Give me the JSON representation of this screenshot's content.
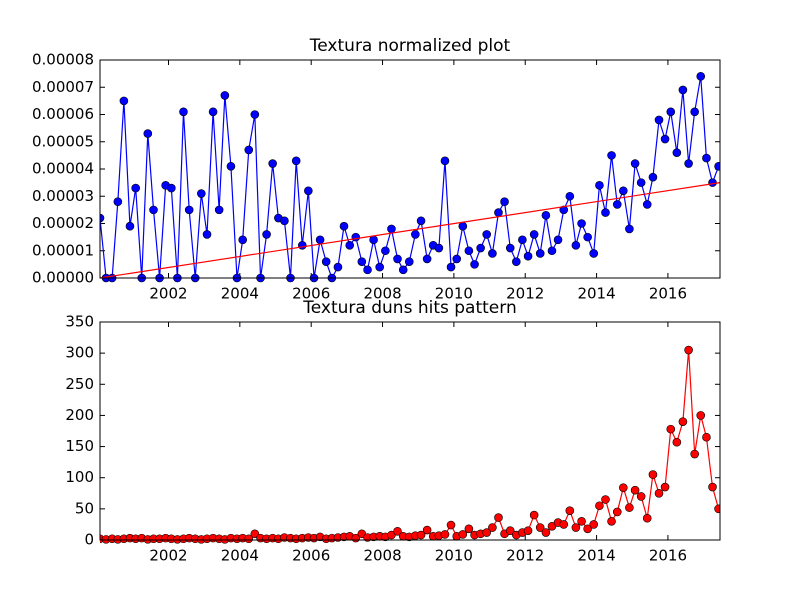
{
  "chart_data": [
    {
      "type": "line",
      "title": "Textura normalized plot",
      "color": "#0000ff",
      "xlim": [
        2000.08,
        2017.46
      ],
      "ylim": [
        0,
        8e-05
      ],
      "xticks": [
        2002,
        2004,
        2006,
        2008,
        2010,
        2012,
        2014,
        2016
      ],
      "yticks": [
        {
          "value": 0,
          "label": "0.00000"
        },
        {
          "value": 1e-05,
          "label": "0.00001"
        },
        {
          "value": 2e-05,
          "label": "0.00002"
        },
        {
          "value": 3e-05,
          "label": "0.00003"
        },
        {
          "value": 4e-05,
          "label": "0.00004"
        },
        {
          "value": 5e-05,
          "label": "0.00005"
        },
        {
          "value": 6e-05,
          "label": "0.00006"
        },
        {
          "value": 7e-05,
          "label": "0.00007"
        },
        {
          "value": 8e-05,
          "label": "0.00008"
        }
      ],
      "x": [
        2000.08,
        2000.25,
        2000.42,
        2000.58,
        2000.75,
        2000.92,
        2001.08,
        2001.25,
        2001.42,
        2001.58,
        2001.75,
        2001.92,
        2002.08,
        2002.25,
        2002.42,
        2002.58,
        2002.75,
        2002.92,
        2003.08,
        2003.25,
        2003.42,
        2003.58,
        2003.75,
        2003.92,
        2004.08,
        2004.25,
        2004.42,
        2004.58,
        2004.75,
        2004.92,
        2005.08,
        2005.25,
        2005.42,
        2005.58,
        2005.75,
        2005.92,
        2006.08,
        2006.25,
        2006.42,
        2006.58,
        2006.75,
        2006.92,
        2007.08,
        2007.25,
        2007.42,
        2007.58,
        2007.75,
        2007.92,
        2008.08,
        2008.25,
        2008.42,
        2008.58,
        2008.75,
        2008.92,
        2009.08,
        2009.25,
        2009.42,
        2009.58,
        2009.75,
        2009.92,
        2010.08,
        2010.25,
        2010.42,
        2010.58,
        2010.75,
        2010.92,
        2011.08,
        2011.25,
        2011.42,
        2011.58,
        2011.75,
        2011.92,
        2012.08,
        2012.25,
        2012.42,
        2012.58,
        2012.75,
        2012.92,
        2013.08,
        2013.25,
        2013.42,
        2013.58,
        2013.75,
        2013.92,
        2014.08,
        2014.25,
        2014.42,
        2014.58,
        2014.75,
        2014.92,
        2015.08,
        2015.25,
        2015.42,
        2015.58,
        2015.75,
        2015.92,
        2016.08,
        2016.25,
        2016.42,
        2016.58,
        2016.75,
        2016.92,
        2017.08,
        2017.25,
        2017.42
      ],
      "values": [
        2.2e-05,
        0,
        0,
        2.8e-05,
        6.5e-05,
        1.9e-05,
        3.3e-05,
        0,
        5.3e-05,
        2.5e-05,
        0,
        3.4e-05,
        3.3e-05,
        0,
        6.1e-05,
        2.5e-05,
        0,
        3.1e-05,
        1.6e-05,
        6.1e-05,
        2.5e-05,
        6.7e-05,
        4.1e-05,
        0,
        1.4e-05,
        4.7e-05,
        6e-05,
        0,
        1.6e-05,
        4.2e-05,
        2.2e-05,
        2.1e-05,
        0,
        4.3e-05,
        1.2e-05,
        3.2e-05,
        0,
        1.4e-05,
        6e-06,
        0,
        4e-06,
        1.9e-05,
        1.2e-05,
        1.5e-05,
        6e-06,
        3e-06,
        1.4e-05,
        4e-06,
        1e-05,
        1.8e-05,
        7e-06,
        3e-06,
        6e-06,
        1.6e-05,
        2.1e-05,
        7e-06,
        1.2e-05,
        1.1e-05,
        4.3e-05,
        4e-06,
        7e-06,
        1.9e-05,
        1e-05,
        5e-06,
        1.1e-05,
        1.6e-05,
        9e-06,
        2.4e-05,
        2.8e-05,
        1.1e-05,
        6e-06,
        1.4e-05,
        8e-06,
        1.6e-05,
        9e-06,
        2.3e-05,
        1e-05,
        1.4e-05,
        2.5e-05,
        3e-05,
        1.2e-05,
        2e-05,
        1.5e-05,
        9e-06,
        3.4e-05,
        2.4e-05,
        4.5e-05,
        2.7e-05,
        3.2e-05,
        1.8e-05,
        4.2e-05,
        3.5e-05,
        2.7e-05,
        3.7e-05,
        5.8e-05,
        5.1e-05,
        6.1e-05,
        4.6e-05,
        6.9e-05,
        4.2e-05,
        6.1e-05,
        7.4e-05,
        4.4e-05,
        3.5e-05,
        4.1e-05
      ],
      "trend_line": {
        "x": [
          2000.08,
          2017.46
        ],
        "values": [
          0,
          3.5e-05
        ],
        "color": "#ff0000"
      }
    },
    {
      "type": "line",
      "title": "Textura duns hits pattern",
      "color": "#ff0000",
      "xlim": [
        2000.08,
        2017.46
      ],
      "ylim": [
        0,
        350
      ],
      "xticks": [
        2002,
        2004,
        2006,
        2008,
        2010,
        2012,
        2014,
        2016
      ],
      "yticks": [
        0,
        50,
        100,
        150,
        200,
        250,
        300,
        350
      ],
      "x": [
        2000.08,
        2000.25,
        2000.42,
        2000.58,
        2000.75,
        2000.92,
        2001.08,
        2001.25,
        2001.42,
        2001.58,
        2001.75,
        2001.92,
        2002.08,
        2002.25,
        2002.42,
        2002.58,
        2002.75,
        2002.92,
        2003.08,
        2003.25,
        2003.42,
        2003.58,
        2003.75,
        2003.92,
        2004.08,
        2004.25,
        2004.42,
        2004.58,
        2004.75,
        2004.92,
        2005.08,
        2005.25,
        2005.42,
        2005.58,
        2005.75,
        2005.92,
        2006.08,
        2006.25,
        2006.42,
        2006.58,
        2006.75,
        2006.92,
        2007.08,
        2007.25,
        2007.42,
        2007.58,
        2007.75,
        2007.92,
        2008.08,
        2008.25,
        2008.42,
        2008.58,
        2008.75,
        2008.92,
        2009.08,
        2009.25,
        2009.42,
        2009.58,
        2009.75,
        2009.92,
        2010.08,
        2010.25,
        2010.42,
        2010.58,
        2010.75,
        2010.92,
        2011.08,
        2011.25,
        2011.42,
        2011.58,
        2011.75,
        2011.92,
        2012.08,
        2012.25,
        2012.42,
        2012.58,
        2012.75,
        2012.92,
        2013.08,
        2013.25,
        2013.42,
        2013.58,
        2013.75,
        2013.92,
        2014.08,
        2014.25,
        2014.42,
        2014.58,
        2014.75,
        2014.92,
        2015.08,
        2015.25,
        2015.42,
        2015.58,
        2015.75,
        2015.92,
        2016.08,
        2016.25,
        2016.42,
        2016.58,
        2016.75,
        2016.92,
        2017.08,
        2017.25,
        2017.42
      ],
      "values": [
        2,
        1,
        2,
        1,
        2,
        3,
        2,
        3,
        1,
        2,
        2,
        3,
        2,
        1,
        2,
        3,
        2,
        1,
        2,
        3,
        2,
        1,
        3,
        2,
        3,
        2,
        10,
        3,
        2,
        3,
        2,
        4,
        3,
        2,
        3,
        4,
        3,
        5,
        2,
        3,
        4,
        5,
        6,
        3,
        10,
        4,
        5,
        6,
        5,
        8,
        14,
        6,
        5,
        7,
        8,
        16,
        6,
        7,
        9,
        24,
        6,
        9,
        18,
        8,
        10,
        12,
        20,
        36,
        10,
        15,
        8,
        12,
        15,
        40,
        20,
        12,
        22,
        28,
        25,
        47,
        20,
        30,
        18,
        25,
        55,
        65,
        30,
        45,
        84,
        52,
        80,
        70,
        35,
        105,
        75,
        85,
        178,
        157,
        190,
        305,
        138,
        200,
        165,
        85,
        50
      ]
    }
  ]
}
